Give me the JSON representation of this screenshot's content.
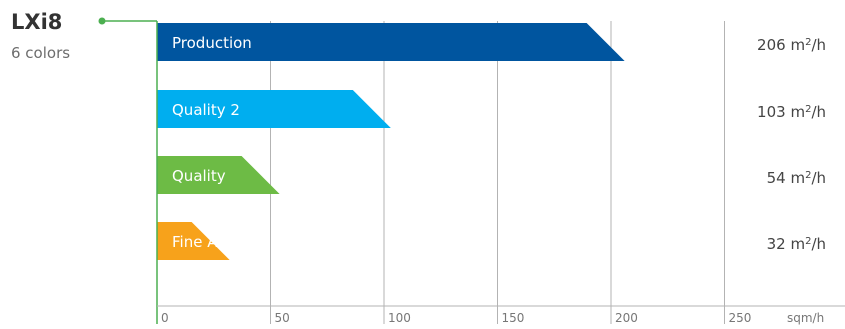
{
  "header": {
    "title": "LXi8",
    "subtitle": "6 colors"
  },
  "colors": {
    "accent_green": "#4caf50",
    "production": "#00559f",
    "quality2": "#00aeef",
    "quality": "#6dbb45",
    "fine_art": "#f7a21b"
  },
  "chart_data": {
    "type": "bar",
    "orientation": "horizontal",
    "title": "LXi8",
    "subtitle": "6 colors",
    "xlabel": "sqm/h",
    "xlim": [
      0,
      250
    ],
    "xticks": [
      0,
      50,
      100,
      150,
      200,
      250
    ],
    "tick_labels": [
      "0",
      "50",
      "100",
      "150",
      "200",
      "250"
    ],
    "grid": true,
    "bars": [
      {
        "name": "Production",
        "value": 206,
        "display": "206 m",
        "unit_sup": "2",
        "unit_tail": "/h",
        "color": "#00559f"
      },
      {
        "name": "Quality 2",
        "value": 103,
        "display": "103 m",
        "unit_sup": "2",
        "unit_tail": "/h",
        "color": "#00aeef"
      },
      {
        "name": "Quality",
        "value": 54,
        "display": "54 m",
        "unit_sup": "2",
        "unit_tail": "/h",
        "color": "#6dbb45"
      },
      {
        "name": "Fine Art",
        "value": 32,
        "display": "32 m",
        "unit_sup": "2",
        "unit_tail": "/h",
        "color": "#f7a21b"
      }
    ]
  }
}
